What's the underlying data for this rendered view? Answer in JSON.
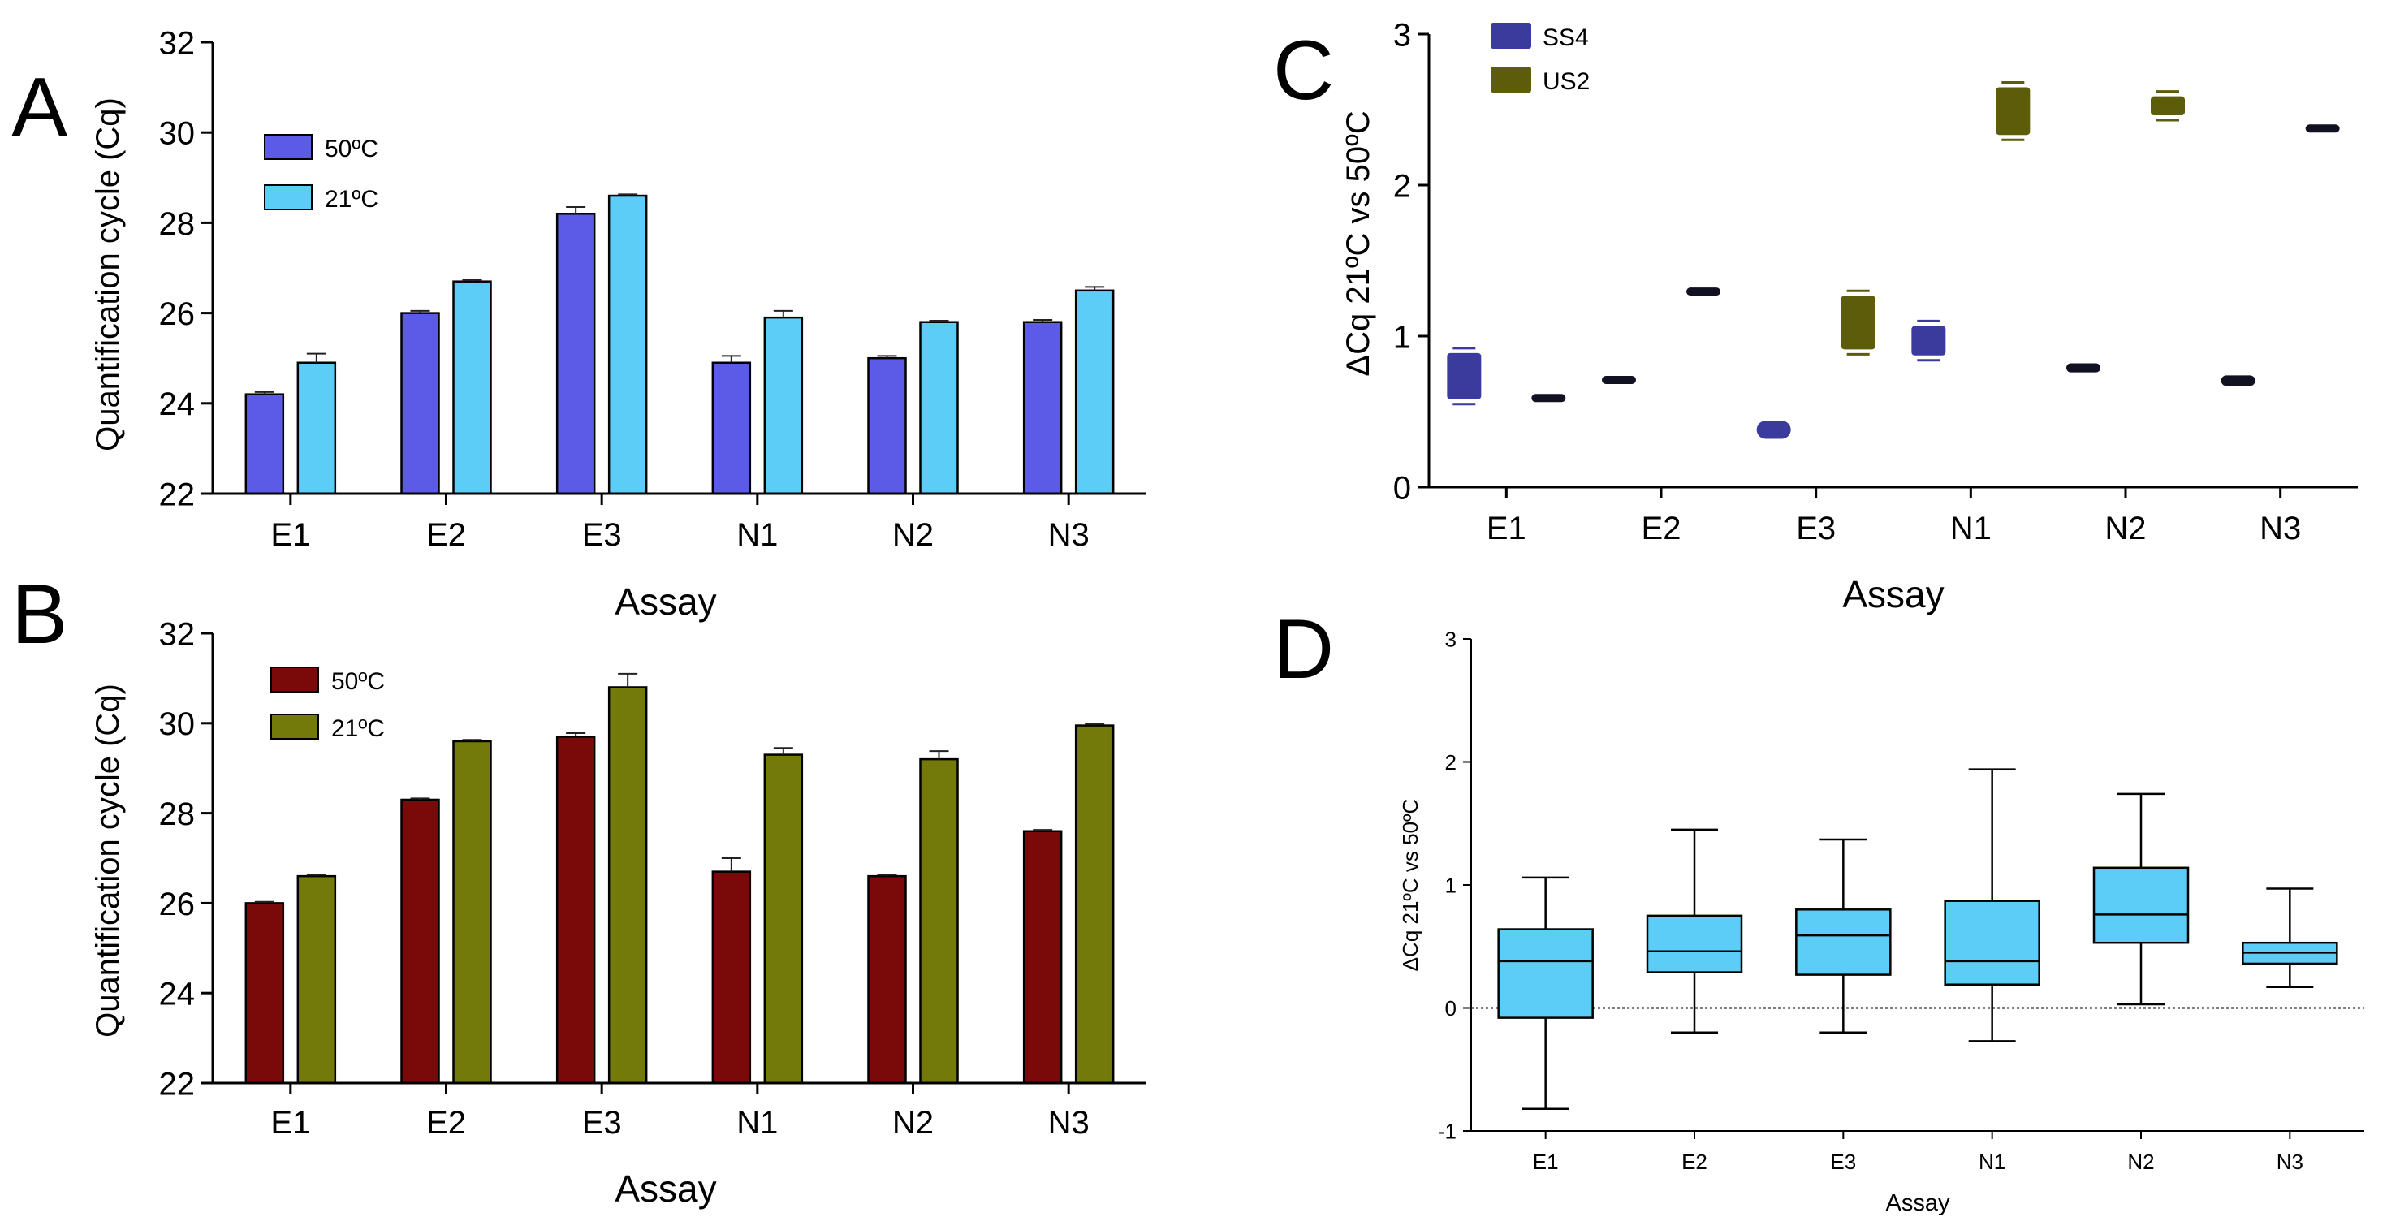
{
  "colors": {
    "a_50": "#5b5be8",
    "a_21": "#5ccdf6",
    "b_50": "#7a0a0a",
    "b_21": "#737a0a",
    "c_ss4": "#3b3b9e",
    "c_us2": "#5c5c0a",
    "c_dark": "#111122",
    "d_box": "#5ccdf6"
  },
  "chart_data": [
    {
      "panel": "A",
      "type": "bar",
      "categories": [
        "E1",
        "E2",
        "E3",
        "N1",
        "N2",
        "N3"
      ],
      "series": [
        {
          "name": "50ºC",
          "values": [
            24.2,
            26.0,
            28.2,
            24.9,
            25.0,
            25.8
          ],
          "errors": [
            0.05,
            0.05,
            0.15,
            0.15,
            0.05,
            0.05
          ]
        },
        {
          "name": "21ºC",
          "values": [
            24.9,
            26.7,
            28.6,
            25.9,
            25.8,
            26.5
          ],
          "errors": [
            0.2,
            0.03,
            0.03,
            0.15,
            0.03,
            0.08
          ]
        }
      ],
      "xlabel": "Assay",
      "ylabel": "Quantification cycle (Cq)",
      "ylim": [
        22,
        32
      ],
      "yticks": [
        "22",
        "24",
        "26",
        "28",
        "30",
        "32"
      ],
      "legend": "top-left"
    },
    {
      "panel": "B",
      "type": "bar",
      "categories": [
        "E1",
        "E2",
        "E3",
        "N1",
        "N2",
        "N3"
      ],
      "series": [
        {
          "name": "50ºC",
          "values": [
            26.0,
            28.3,
            29.7,
            26.7,
            26.6,
            27.6
          ],
          "errors": [
            0.03,
            0.03,
            0.08,
            0.3,
            0.03,
            0.03
          ]
        },
        {
          "name": "21ºC",
          "values": [
            26.6,
            29.6,
            30.8,
            29.3,
            29.2,
            29.95
          ],
          "errors": [
            0.03,
            0.03,
            0.3,
            0.15,
            0.18,
            0.03
          ]
        }
      ],
      "xlabel": "Assay",
      "ylabel": "Quantification cycle (Cq)",
      "ylim": [
        22,
        32
      ],
      "yticks": [
        "22",
        "24",
        "26",
        "28",
        "30",
        "32"
      ],
      "legend": "top-left"
    },
    {
      "panel": "C",
      "type": "box",
      "categories": [
        "E1",
        "E2",
        "E3",
        "N1",
        "N2",
        "N3"
      ],
      "series": [
        {
          "name": "SS4",
          "ranges": [
            [
              0.55,
              0.92
            ],
            [
              0.7,
              0.72
            ],
            [
              0.32,
              0.44
            ],
            [
              0.84,
              1.1
            ],
            [
              0.76,
              0.82
            ],
            [
              0.67,
              0.74
            ]
          ]
        },
        {
          "name": "US2",
          "ranges": [
            [
              0.58,
              0.6
            ],
            [
              1.27,
              1.32
            ],
            [
              0.88,
              1.3
            ],
            [
              2.3,
              2.68
            ],
            [
              2.43,
              2.62
            ],
            [
              2.35,
              2.4
            ]
          ]
        }
      ],
      "dark_markers": [
        [
          false,
          true
        ],
        [
          true,
          true
        ],
        [
          false,
          false
        ],
        [
          false,
          false
        ],
        [
          true,
          false
        ],
        [
          true,
          true
        ]
      ],
      "xlabel": "Assay",
      "ylabel": "ΔCq 21ºC vs 50ºC",
      "ylim": [
        0,
        3
      ],
      "yticks": [
        "0",
        "1",
        "2",
        "3"
      ],
      "legend": "top-left"
    },
    {
      "panel": "D",
      "type": "box",
      "categories": [
        "E1",
        "E2",
        "E3",
        "N1",
        "N2",
        "N3"
      ],
      "boxes": [
        {
          "min": -0.82,
          "q1": -0.08,
          "median": 0.38,
          "q3": 0.64,
          "max": 1.06
        },
        {
          "min": -0.2,
          "q1": 0.29,
          "median": 0.46,
          "q3": 0.75,
          "max": 1.45
        },
        {
          "min": -0.2,
          "q1": 0.27,
          "median": 0.59,
          "q3": 0.8,
          "max": 1.37
        },
        {
          "min": -0.27,
          "q1": 0.19,
          "median": 0.38,
          "q3": 0.87,
          "max": 1.94
        },
        {
          "min": 0.03,
          "q1": 0.53,
          "median": 0.76,
          "q3": 1.14,
          "max": 1.74
        },
        {
          "min": 0.17,
          "q1": 0.36,
          "median": 0.45,
          "q3": 0.53,
          "max": 0.97
        }
      ],
      "reference_line": 0,
      "xlabel": "Assay",
      "ylabel": "ΔCq 21ºC vs 50ºC",
      "ylim": [
        -1,
        3
      ],
      "yticks": [
        "-1",
        "0",
        "1",
        "2",
        "3"
      ]
    }
  ]
}
